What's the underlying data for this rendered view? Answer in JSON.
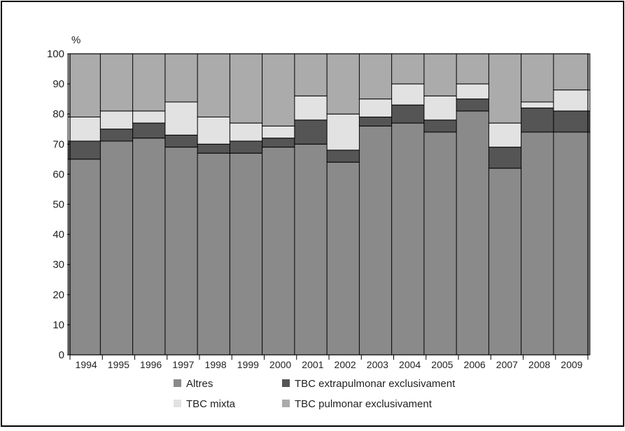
{
  "chart_data": {
    "type": "bar",
    "stacked": true,
    "ylabel": "%",
    "ylim": [
      0,
      100
    ],
    "yticks": [
      0,
      10,
      20,
      30,
      40,
      50,
      60,
      70,
      80,
      90,
      100
    ],
    "grid": "horizontal",
    "legend_position": "bottom",
    "categories": [
      "1994",
      "1995",
      "1996",
      "1997",
      "1998",
      "1999",
      "2000",
      "2001",
      "2002",
      "2003",
      "2004",
      "2005",
      "2006",
      "2007",
      "2008",
      "2009"
    ],
    "series": [
      {
        "name": "Altres",
        "color": "#8a8a8a",
        "values": [
          65,
          71,
          72,
          69,
          67,
          67,
          69,
          70,
          64,
          76,
          77,
          74,
          81,
          62,
          74,
          74
        ]
      },
      {
        "name": "TBC extrapulmonar exclusivament",
        "color": "#555555",
        "values": [
          6,
          4,
          5,
          4,
          3,
          4,
          3,
          8,
          4,
          3,
          6,
          4,
          4,
          7,
          8,
          7
        ]
      },
      {
        "name": "TBC mixta",
        "color": "#e2e2e2",
        "values": [
          8,
          6,
          4,
          11,
          9,
          6,
          4,
          8,
          12,
          6,
          7,
          8,
          5,
          8,
          2,
          7
        ]
      },
      {
        "name": "TBC pulmonar exclusivament",
        "color": "#ababab",
        "values": [
          21,
          19,
          19,
          16,
          21,
          23,
          24,
          14,
          20,
          15,
          10,
          14,
          10,
          23,
          16,
          12
        ]
      }
    ],
    "legend_order": [
      "Altres",
      "TBC extrapulmonar exclusivament",
      "TBC mixta",
      "TBC pulmonar exclusivament"
    ]
  }
}
